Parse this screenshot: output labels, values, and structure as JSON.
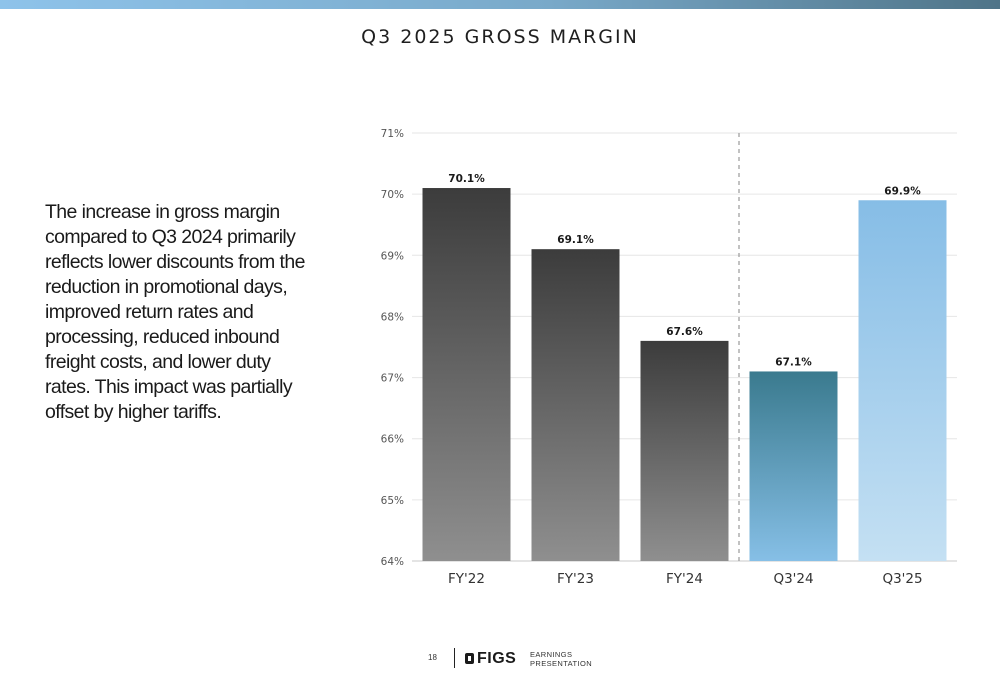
{
  "slide": {
    "title": "Q3 2025 GROSS MARGIN",
    "body": "The increase in gross margin compared to Q3 2024 primarily reflects lower discounts from the reduction in promotional days, improved return rates and processing, reduced inbound freight costs, and lower duty rates.  This impact was partially offset by higher tariffs.",
    "accent_color": "#8ec3ea"
  },
  "chart_data": {
    "type": "bar",
    "title": "",
    "xlabel": "",
    "ylabel": "",
    "categories": [
      "FY'22",
      "FY'23",
      "FY'24",
      "Q3'24",
      "Q3'25"
    ],
    "values": [
      70.1,
      69.1,
      67.6,
      67.1,
      69.9
    ],
    "value_labels": [
      "70.1%",
      "69.1%",
      "67.6%",
      "67.1%",
      "69.9%"
    ],
    "ylim": [
      64,
      71
    ],
    "yticks": [
      64,
      65,
      66,
      67,
      68,
      69,
      70,
      71
    ],
    "ytick_labels": [
      "64%",
      "65%",
      "66%",
      "67%",
      "68%",
      "69%",
      "70%",
      "71%"
    ],
    "grid": true,
    "separator_after_category": "FY'24",
    "bar_colors": [
      {
        "top": "#3c3c3c",
        "bottom": "#8f8f8f"
      },
      {
        "top": "#3c3c3c",
        "bottom": "#8f8f8f"
      },
      {
        "top": "#3c3c3c",
        "bottom": "#8f8f8f"
      },
      {
        "top": "#3a7a8e",
        "bottom": "#86bfe6"
      },
      {
        "top": "#86bde6",
        "bottom": "#c4e0f3"
      }
    ]
  },
  "footer": {
    "page_number": "18",
    "logo_text": "FIGS",
    "caption_line1": "EARNINGS",
    "caption_line2": "PRESENTATION"
  }
}
